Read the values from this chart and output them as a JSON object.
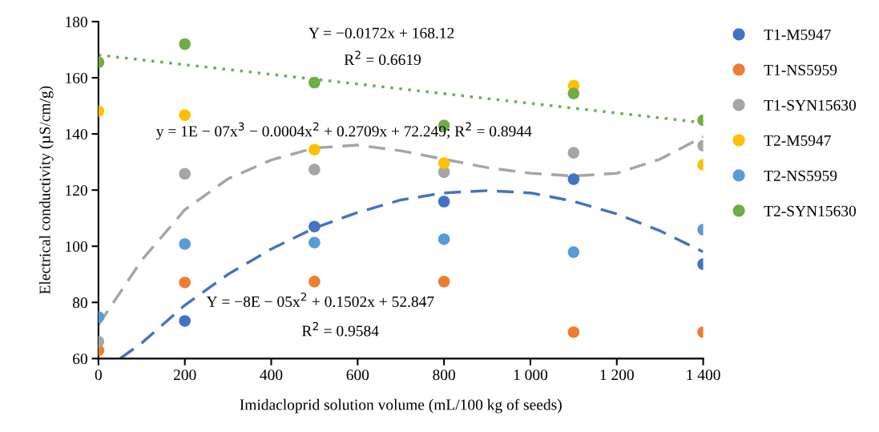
{
  "chart_data": {
    "type": "scatter",
    "xlabel": "Imidacloprid solution volume (mL/100 kg of seeds)",
    "ylabel": "Electrical conductivity (µS/cm/g)",
    "x": [
      0,
      200,
      500,
      800,
      1100,
      1400
    ],
    "xlim": [
      0,
      1400
    ],
    "xticks": [
      0,
      200,
      400,
      600,
      800,
      {
        "value": 1000,
        "label": "1 000"
      },
      {
        "value": 1200,
        "label": "1 200"
      },
      {
        "value": 1400,
        "label": "1 400"
      }
    ],
    "ylim": [
      60,
      180
    ],
    "yticks": [
      60,
      80,
      100,
      120,
      140,
      160,
      180
    ],
    "grid": false,
    "legend": "right",
    "marker": "circle",
    "series": [
      {
        "name": "T1-M5947",
        "color": "#4472c4",
        "values": [
          null,
          73.4,
          107,
          115.9,
          123.9,
          93.6
        ]
      },
      {
        "name": "T1-NS5959",
        "color": "#ed7d31",
        "values": [
          62.9,
          87.1,
          87.4,
          87.4,
          69.4,
          69.4
        ]
      },
      {
        "name": "T1-SYN15630",
        "color": "#a5a5a5",
        "values": [
          66,
          125.8,
          127.3,
          126.4,
          133.3,
          135.8
        ]
      },
      {
        "name": "T2-M5947",
        "color": "#ffc000",
        "values": [
          148.1,
          146.7,
          134.4,
          129.6,
          157.2,
          129
        ]
      },
      {
        "name": "T2-NS5959",
        "color": "#5b9bd5",
        "values": [
          74.8,
          100.8,
          101.3,
          102.5,
          97.9,
          105.9
        ]
      },
      {
        "name": "T2-SYN15630",
        "color": "#70ad47",
        "values": [
          165.5,
          172,
          158.3,
          143,
          154.4,
          144.9
        ]
      },
      {
        "type": "line",
        "color": "#70ad47",
        "line_style": "dotted",
        "marker": "none",
        "x": [
          0,
          1400
        ],
        "values": [
          168.1,
          144.0
        ]
      },
      {
        "type": "line",
        "color": "#a5a5a5",
        "line_style": "dashed",
        "marker": "none",
        "x": [
          0,
          100,
          200,
          300,
          400,
          500,
          600,
          700,
          800,
          900,
          1000,
          1100,
          1200,
          1300,
          1400
        ],
        "values": [
          72,
          95,
          113,
          124,
          130.7,
          135,
          136,
          134,
          131,
          128,
          126,
          125,
          126,
          131,
          139
        ]
      },
      {
        "type": "line",
        "color": "#4472c4",
        "line_style": "dashed",
        "marker": "none",
        "x": [
          50,
          100,
          200,
          300,
          400,
          500,
          600,
          700,
          800,
          900,
          1000,
          1100,
          1200,
          1300,
          1400
        ],
        "values": [
          60,
          65.5,
          79,
          90,
          99,
          106.5,
          112,
          116.5,
          119,
          119.8,
          119,
          116,
          111.5,
          105.5,
          98
        ]
      }
    ],
    "annotations": [
      "Y = −0.0172x + 168.12",
      "R$^{2}$ = 0.6619",
      "y = 1E − 07x$^{3}$ − 0.0004x$^{2}$ + 0.2709x + 72.249; R$^{2}$ = 0.8944",
      "Y = −8E − 05x$^{2}$ + 0.1502x + 52.847",
      "R$^{2}$ = 0.9584"
    ]
  }
}
